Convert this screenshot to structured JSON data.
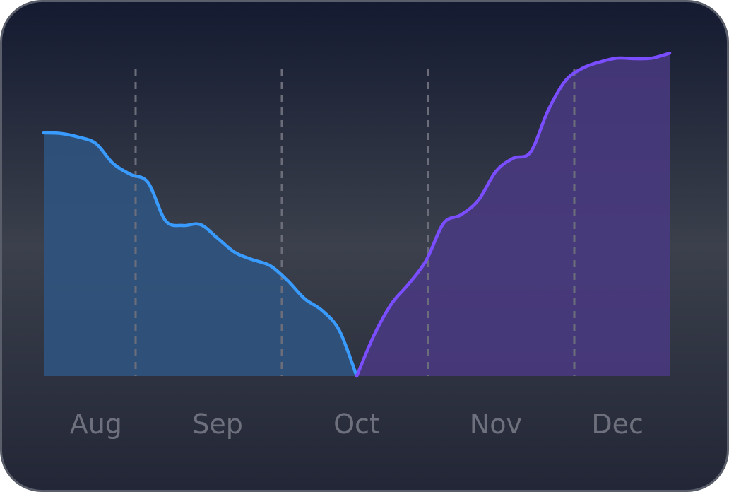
{
  "chart_data": {
    "type": "line",
    "categories": [
      null,
      null,
      null,
      "Aug",
      null,
      null,
      null,
      null,
      null,
      null,
      "Sep",
      null,
      null,
      null,
      null,
      null,
      null,
      null,
      "Oct",
      null,
      null,
      null,
      null,
      null,
      null,
      null,
      "Nov",
      null,
      null,
      null,
      null,
      null,
      null,
      "Dec",
      null,
      null,
      null
    ],
    "series": [
      {
        "color": "#3a9bff",
        "fill": "#2f5683",
        "values": [
          74.8,
          74.6,
          73.5,
          71.5,
          65.3,
          62,
          59.5,
          47.8,
          46.3,
          46.6,
          42.4,
          38,
          35.8,
          34,
          29.5,
          23.8,
          20.2,
          14,
          0,
          null,
          null,
          null,
          null,
          null,
          null,
          null,
          null,
          null,
          null,
          null,
          null,
          null,
          null,
          null,
          null,
          null,
          null
        ]
      },
      {
        "color": "#7a4dff",
        "fill": "#4a3a82",
        "values": [
          null,
          null,
          null,
          null,
          null,
          null,
          null,
          null,
          null,
          null,
          null,
          null,
          null,
          null,
          null,
          null,
          null,
          null,
          0,
          12.6,
          22.2,
          28.4,
          35.6,
          47,
          49.6,
          54.1,
          62.9,
          67,
          68.9,
          81.6,
          90.8,
          94.7,
          96.6,
          97.8,
          97.6,
          97.8,
          99.3
        ]
      }
    ],
    "ylim": [
      0,
      100
    ]
  }
}
